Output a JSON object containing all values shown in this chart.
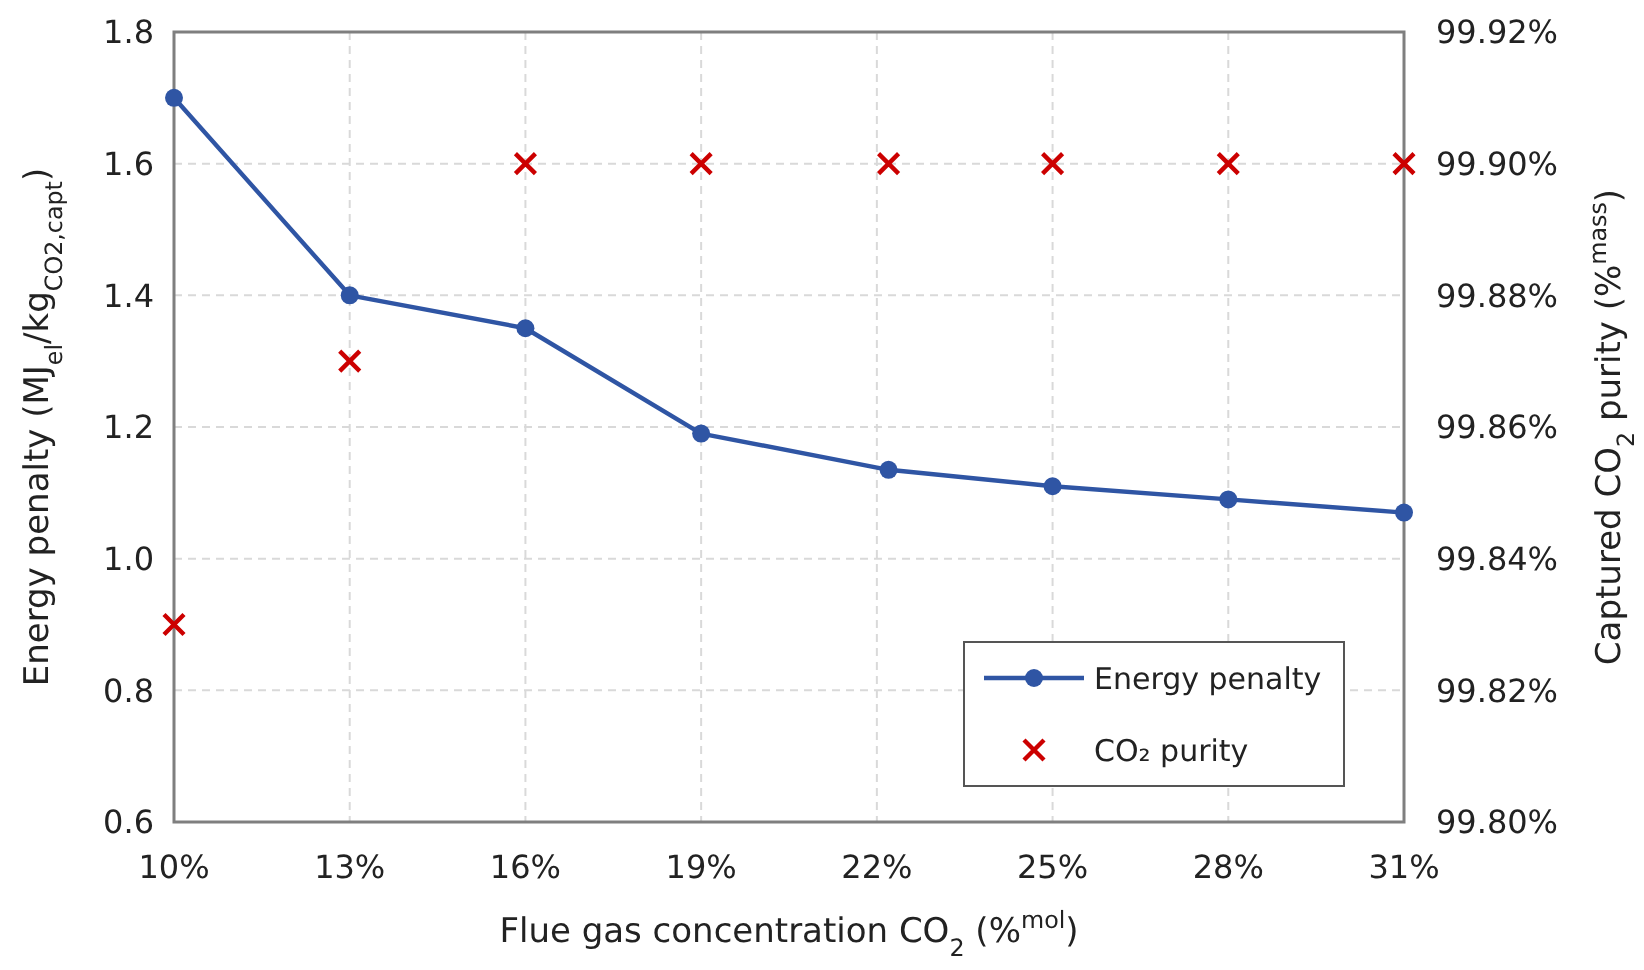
{
  "chart_data": {
    "type": "line",
    "xlabel": "Flue gas concentration CO$_{2}$ (%$^{mol}$)",
    "ylabel": "Energy penalty (MJ$_{el}$/kg$_{CO2,capt}$)",
    "y2label": "Captured CO$_{2}$ purity (%$^{mass}$)",
    "xlim": [
      10,
      31
    ],
    "xticks": [
      {
        "value": 10,
        "label": "10%"
      },
      {
        "value": 13,
        "label": "13%"
      },
      {
        "value": 16,
        "label": "16%"
      },
      {
        "value": 19,
        "label": "19%"
      },
      {
        "value": 22,
        "label": "22%"
      },
      {
        "value": 25,
        "label": "25%"
      },
      {
        "value": 28,
        "label": "28%"
      },
      {
        "value": 31,
        "label": "31%"
      }
    ],
    "ylim": [
      0.6,
      1.8
    ],
    "yticks": [
      {
        "value": 0.6,
        "label": "0.6"
      },
      {
        "value": 0.8,
        "label": "0.8"
      },
      {
        "value": 1.0,
        "label": "1.0"
      },
      {
        "value": 1.2,
        "label": "1.2"
      },
      {
        "value": 1.4,
        "label": "1.4"
      },
      {
        "value": 1.6,
        "label": "1.6"
      },
      {
        "value": 1.8,
        "label": "1.8"
      }
    ],
    "y2lim": [
      99.8,
      99.92
    ],
    "y2ticks": [
      {
        "value": 99.8,
        "label": "99.80%"
      },
      {
        "value": 99.82,
        "label": "99.82%"
      },
      {
        "value": 99.84,
        "label": "99.84%"
      },
      {
        "value": 99.86,
        "label": "99.86%"
      },
      {
        "value": 99.88,
        "label": "99.88%"
      },
      {
        "value": 99.9,
        "label": "99.90%"
      },
      {
        "value": 99.92,
        "label": "99.92%"
      }
    ],
    "grid": true,
    "legend": "bottom right",
    "series": [
      {
        "name": "Energy penalty",
        "color": "#2f55a4",
        "marker": "circle",
        "line_style": "solid",
        "x": [
          10,
          13,
          16,
          19,
          22.2,
          25,
          28,
          31
        ],
        "values": [
          1.7,
          1.4,
          1.35,
          1.19,
          1.135,
          1.11,
          1.09,
          1.07
        ]
      },
      {
        "name": "CO₂ purity",
        "type": "scatter",
        "axis": "y2",
        "color": "#cc0000",
        "marker": "cross",
        "x": [
          10,
          13,
          16,
          19,
          22.2,
          25,
          28,
          31
        ],
        "values": [
          99.83,
          99.87,
          99.9,
          99.9,
          99.9,
          99.9,
          99.9,
          99.9
        ]
      }
    ]
  }
}
